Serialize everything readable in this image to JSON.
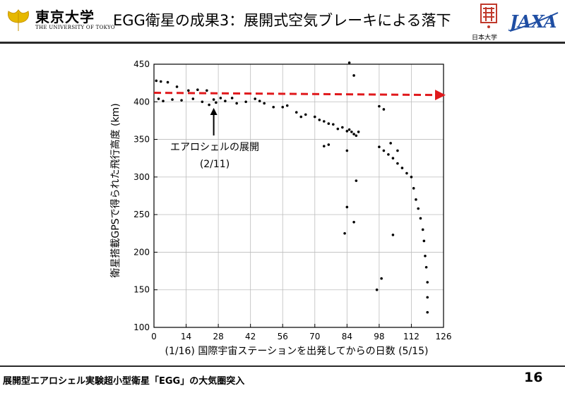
{
  "header": {
    "university_name_jp": "東京大学",
    "university_name_en": "THE UNIVERSITY OF TOKYO",
    "title": "EGG衛星の成果3：展開式空気ブレーキによる落下",
    "partner_name": "日本大学",
    "agency_logo": "JAXA"
  },
  "chart_data": {
    "type": "scatter",
    "ylabel": "衛星搭載GPSで得られた飛行高度 (km)",
    "xlabel": "(1/16) 国際宇宙ステーションを出発してからの日数 (5/15)",
    "xlim": [
      0,
      126
    ],
    "ylim": [
      100,
      450
    ],
    "x_ticks": [
      "0",
      "14",
      "28",
      "42",
      "56",
      "70",
      "84",
      "98",
      "112",
      "126"
    ],
    "y_ticks": [
      "100",
      "150",
      "200",
      "250",
      "300",
      "350",
      "400",
      "450"
    ],
    "grid": true,
    "series": [
      {
        "points": [
          [
            1,
            428
          ],
          [
            3,
            427
          ],
          [
            6,
            426
          ],
          [
            2,
            404
          ],
          [
            4,
            401
          ],
          [
            8,
            403
          ],
          [
            10,
            420
          ],
          [
            12,
            402
          ],
          [
            15,
            415
          ],
          [
            17,
            404
          ],
          [
            19,
            416
          ],
          [
            21,
            400
          ],
          [
            23,
            415
          ],
          [
            24,
            396
          ],
          [
            26,
            403
          ],
          [
            27,
            399
          ],
          [
            29,
            405
          ],
          [
            31,
            401
          ],
          [
            34,
            405
          ],
          [
            36,
            398
          ],
          [
            40,
            400
          ],
          [
            44,
            404
          ],
          [
            46,
            401
          ],
          [
            48,
            398
          ],
          [
            52,
            393
          ],
          [
            56,
            393
          ],
          [
            58,
            395
          ],
          [
            62,
            386
          ],
          [
            64,
            380
          ],
          [
            66,
            383
          ],
          [
            70,
            380
          ],
          [
            72,
            376
          ],
          [
            74,
            374
          ],
          [
            76,
            371
          ],
          [
            78,
            370
          ],
          [
            80,
            364
          ],
          [
            82,
            366
          ],
          [
            84,
            361
          ],
          [
            85,
            363
          ],
          [
            86,
            360
          ],
          [
            87,
            357
          ],
          [
            88,
            355
          ],
          [
            89,
            360
          ],
          [
            74,
            341
          ],
          [
            76,
            343
          ],
          [
            84,
            335
          ],
          [
            85,
            452
          ],
          [
            87,
            435
          ],
          [
            83,
            225
          ],
          [
            84,
            260
          ],
          [
            87,
            240
          ],
          [
            88,
            295
          ],
          [
            97,
            150
          ],
          [
            98,
            394
          ],
          [
            99,
            165
          ],
          [
            100,
            390
          ],
          [
            103,
            345
          ],
          [
            104,
            223
          ],
          [
            106,
            335
          ],
          [
            98,
            340
          ],
          [
            100,
            335
          ],
          [
            102,
            330
          ],
          [
            104,
            325
          ],
          [
            106,
            318
          ],
          [
            108,
            312
          ],
          [
            110,
            305
          ],
          [
            112,
            300
          ],
          [
            113,
            285
          ],
          [
            114,
            270
          ],
          [
            115,
            258
          ],
          [
            116,
            245
          ],
          [
            117,
            230
          ],
          [
            117.5,
            215
          ],
          [
            118,
            195
          ],
          [
            118.5,
            180
          ],
          [
            119,
            160
          ],
          [
            119,
            140
          ],
          [
            119,
            120
          ]
        ]
      }
    ],
    "annotation": {
      "text": "エアロシェルの展開",
      "date": "(2/11)",
      "x": 26,
      "y": 405
    },
    "trend_arrow": {
      "from": [
        0,
        412
      ],
      "to": [
        126,
        409
      ],
      "color": "#e0191c"
    }
  },
  "footer": {
    "text": "展開型エアロシェル実験超小型衛星「EGG」の大気圏突入",
    "page_number": "16"
  }
}
